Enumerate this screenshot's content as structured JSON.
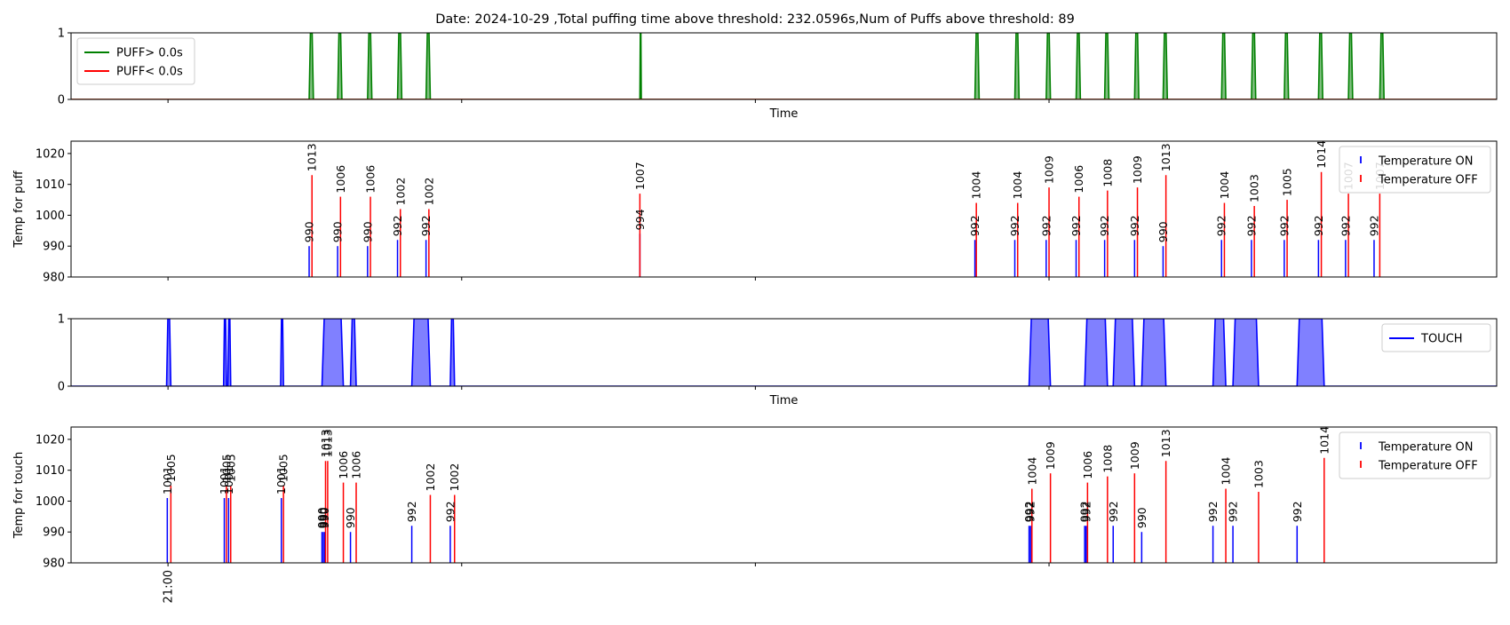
{
  "chart_data": {
    "title": "Date: 2024-10-29 ,Total puffing time above threshold: 232.0596s,Num of Puffs above threshold: 89",
    "colors": {
      "puff_on": "#008000",
      "puff_on_fill": "#7fbf7f",
      "puff_off": "#ff0000",
      "touch": "#0000ff",
      "touch_fill": "#8080ff",
      "temp_on": "#0000ff",
      "temp_off": "#ff0000"
    },
    "x_axis": {
      "range": [
        0,
        100
      ],
      "tick_positions": [
        6.8,
        27.4,
        48.0,
        68.6
      ],
      "tick_labels": [
        "21:00",
        "",
        "",
        ""
      ]
    },
    "panels": [
      {
        "id": "puff",
        "type": "area",
        "xlabel": "Time",
        "ylabel": "",
        "ylim": [
          0,
          1
        ],
        "yticks": [
          "0",
          "1"
        ],
        "legend": {
          "position": "top-left",
          "entries": [
            "PUFF> 0.0s",
            "PUFF< 0.0s"
          ]
        },
        "intervals": [
          [
            16.7,
            17.0
          ],
          [
            18.7,
            19.0
          ],
          [
            20.8,
            21.1
          ],
          [
            22.9,
            23.2
          ],
          [
            24.9,
            25.2
          ],
          [
            39.9,
            40.0
          ],
          [
            63.4,
            63.7
          ],
          [
            66.2,
            66.5
          ],
          [
            68.4,
            68.7
          ],
          [
            70.5,
            70.8
          ],
          [
            72.5,
            72.8
          ],
          [
            74.6,
            74.9
          ],
          [
            76.6,
            76.9
          ],
          [
            80.7,
            81.0
          ],
          [
            82.8,
            83.1
          ],
          [
            85.1,
            85.4
          ],
          [
            87.5,
            87.8
          ],
          [
            89.6,
            89.9
          ],
          [
            91.8,
            92.1
          ]
        ]
      },
      {
        "id": "temp-puff",
        "type": "bar",
        "xlabel": "",
        "ylabel": "Temp for puff",
        "ylim": [
          980,
          1024
        ],
        "yticks": [
          "980",
          "990",
          "1000",
          "1010",
          "1020"
        ],
        "legend": {
          "position": "top-right",
          "entries": [
            "Temperature ON",
            "Temperature OFF"
          ]
        },
        "on_events": [
          {
            "x": 16.7,
            "v": 990,
            "label": "990"
          },
          {
            "x": 18.7,
            "v": 990,
            "label": "990"
          },
          {
            "x": 20.8,
            "v": 990,
            "label": "990"
          },
          {
            "x": 22.9,
            "v": 992,
            "label": "992"
          },
          {
            "x": 24.9,
            "v": 992,
            "label": "992"
          },
          {
            "x": 39.9,
            "v": 994,
            "label": "994"
          },
          {
            "x": 63.4,
            "v": 992,
            "label": "992"
          },
          {
            "x": 66.2,
            "v": 992,
            "label": "992"
          },
          {
            "x": 68.4,
            "v": 992,
            "label": "992"
          },
          {
            "x": 70.5,
            "v": 992,
            "label": "992"
          },
          {
            "x": 72.5,
            "v": 992,
            "label": "992"
          },
          {
            "x": 74.6,
            "v": 992,
            "label": "992"
          },
          {
            "x": 76.6,
            "v": 990,
            "label": "990"
          },
          {
            "x": 80.7,
            "v": 992,
            "label": "992"
          },
          {
            "x": 82.8,
            "v": 992,
            "label": "992"
          },
          {
            "x": 85.1,
            "v": 992,
            "label": "992"
          },
          {
            "x": 87.5,
            "v": 992,
            "label": "992"
          },
          {
            "x": 89.4,
            "v": 992,
            "label": "992"
          },
          {
            "x": 91.4,
            "v": 992,
            "label": "992"
          }
        ],
        "off_events": [
          {
            "x": 16.9,
            "v": 1013,
            "label": "1013"
          },
          {
            "x": 18.9,
            "v": 1006,
            "label": "1006"
          },
          {
            "x": 21.0,
            "v": 1006,
            "label": "1006"
          },
          {
            "x": 23.1,
            "v": 1002,
            "label": "1002"
          },
          {
            "x": 25.1,
            "v": 1002,
            "label": "1002"
          },
          {
            "x": 39.9,
            "v": 1007,
            "label": "1007"
          },
          {
            "x": 63.5,
            "v": 1004,
            "label": "1004"
          },
          {
            "x": 66.4,
            "v": 1004,
            "label": "1004"
          },
          {
            "x": 68.6,
            "v": 1009,
            "label": "1009"
          },
          {
            "x": 70.7,
            "v": 1006,
            "label": "1006"
          },
          {
            "x": 72.7,
            "v": 1008,
            "label": "1008"
          },
          {
            "x": 74.8,
            "v": 1009,
            "label": "1009"
          },
          {
            "x": 76.8,
            "v": 1013,
            "label": "1013"
          },
          {
            "x": 80.9,
            "v": 1004,
            "label": "1004"
          },
          {
            "x": 83.0,
            "v": 1003,
            "label": "1003"
          },
          {
            "x": 85.3,
            "v": 1005,
            "label": "1005"
          },
          {
            "x": 87.7,
            "v": 1014,
            "label": "1014"
          },
          {
            "x": 89.6,
            "v": 1007,
            "label": "1007"
          },
          {
            "x": 91.8,
            "v": 1007,
            "label": "1007"
          }
        ]
      },
      {
        "id": "touch",
        "type": "area",
        "xlabel": "Time",
        "ylabel": "",
        "ylim": [
          0,
          1
        ],
        "yticks": [
          "0",
          "1"
        ],
        "legend": {
          "position": "top-right",
          "entries": [
            "TOUCH"
          ]
        },
        "intervals": [
          [
            6.7,
            7.0
          ],
          [
            10.7,
            10.9
          ],
          [
            11.0,
            11.2
          ],
          [
            14.7,
            14.9
          ],
          [
            17.6,
            19.1
          ],
          [
            19.6,
            20.0
          ],
          [
            23.9,
            25.2
          ],
          [
            26.6,
            26.9
          ],
          [
            67.2,
            68.7
          ],
          [
            71.1,
            72.7
          ],
          [
            73.1,
            74.6
          ],
          [
            75.1,
            76.8
          ],
          [
            80.1,
            81.0
          ],
          [
            81.5,
            83.3
          ],
          [
            86.0,
            87.9
          ]
        ]
      },
      {
        "id": "temp-touch",
        "type": "bar",
        "xlabel": "",
        "ylabel": "Temp for touch",
        "ylim": [
          980,
          1024
        ],
        "yticks": [
          "980",
          "990",
          "1000",
          "1010",
          "1020"
        ],
        "legend": {
          "position": "top-right",
          "entries": [
            "Temperature ON",
            "Temperature OFF"
          ]
        },
        "on_events": [
          {
            "x": 6.75,
            "v": 1001,
            "label": "1001"
          },
          {
            "x": 10.75,
            "v": 1001,
            "label": "1001"
          },
          {
            "x": 11.05,
            "v": 1001,
            "label": "1001"
          },
          {
            "x": 14.75,
            "v": 1001,
            "label": "1001"
          },
          {
            "x": 17.6,
            "v": 990,
            "label": "990"
          },
          {
            "x": 17.7,
            "v": 990,
            "label": "990"
          },
          {
            "x": 17.8,
            "v": 990,
            "label": "990"
          },
          {
            "x": 19.6,
            "v": 990,
            "label": "990"
          },
          {
            "x": 23.9,
            "v": 992,
            "label": "992"
          },
          {
            "x": 26.6,
            "v": 992,
            "label": "992"
          },
          {
            "x": 67.2,
            "v": 992,
            "label": "992"
          },
          {
            "x": 67.3,
            "v": 992,
            "label": "992"
          },
          {
            "x": 71.1,
            "v": 992,
            "label": "992"
          },
          {
            "x": 71.2,
            "v": 992,
            "label": "992"
          },
          {
            "x": 73.1,
            "v": 992,
            "label": "992"
          },
          {
            "x": 75.1,
            "v": 990,
            "label": "990"
          },
          {
            "x": 80.1,
            "v": 992,
            "label": "992"
          },
          {
            "x": 81.5,
            "v": 992,
            "label": "992"
          },
          {
            "x": 86.0,
            "v": 992,
            "label": "992"
          }
        ],
        "off_events": [
          {
            "x": 7.0,
            "v": 1005,
            "label": "1005"
          },
          {
            "x": 10.9,
            "v": 1005,
            "label": "1005"
          },
          {
            "x": 11.2,
            "v": 1005,
            "label": "1005"
          },
          {
            "x": 14.9,
            "v": 1005,
            "label": "1005"
          },
          {
            "x": 17.85,
            "v": 1013,
            "label": "1013"
          },
          {
            "x": 18.0,
            "v": 1013,
            "label": "1013"
          },
          {
            "x": 19.1,
            "v": 1006,
            "label": "1006"
          },
          {
            "x": 20.0,
            "v": 1006,
            "label": "1006"
          },
          {
            "x": 25.2,
            "v": 1002,
            "label": "1002"
          },
          {
            "x": 26.9,
            "v": 1002,
            "label": "1002"
          },
          {
            "x": 67.4,
            "v": 1004,
            "label": "1004"
          },
          {
            "x": 68.7,
            "v": 1009,
            "label": "1009"
          },
          {
            "x": 71.3,
            "v": 1006,
            "label": "1006"
          },
          {
            "x": 72.7,
            "v": 1008,
            "label": "1008"
          },
          {
            "x": 74.6,
            "v": 1009,
            "label": "1009"
          },
          {
            "x": 76.8,
            "v": 1013,
            "label": "1013"
          },
          {
            "x": 81.0,
            "v": 1004,
            "label": "1004"
          },
          {
            "x": 83.3,
            "v": 1003,
            "label": "1003"
          },
          {
            "x": 87.9,
            "v": 1014,
            "label": "1014"
          }
        ]
      }
    ]
  }
}
